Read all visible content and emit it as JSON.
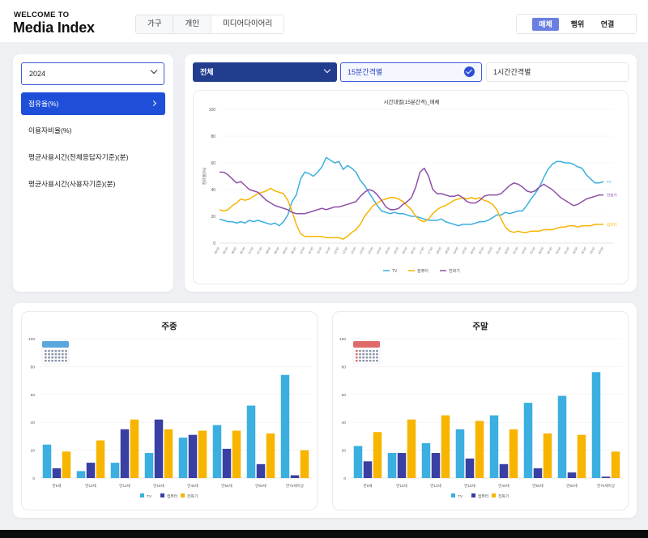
{
  "header": {
    "logo_small": "WELCOME TO",
    "logo_big": "Media Index",
    "segments": [
      "가구",
      "개인",
      "미디어다이어리"
    ],
    "modes": [
      "매체",
      "행위",
      "연결"
    ],
    "active_mode": "매체"
  },
  "sidebar": {
    "year": "2024",
    "items": [
      {
        "label": "점유율(%)",
        "active": true
      },
      {
        "label": "이용자비율(%)",
        "active": false
      },
      {
        "label": "평균사용시간(전체응답자기준)(분)",
        "active": false
      },
      {
        "label": "평균사용시간(사용자기준)(분)",
        "active": false
      }
    ]
  },
  "filters": {
    "scope": "전체",
    "interval_selected": "15분간격별",
    "interval_other": "1시간간격별"
  },
  "colors": {
    "tv": "#3aafe0",
    "computer": "#3a3fa3",
    "smartphone": "#f7b500",
    "smartphone_line": "#8e4fa6"
  },
  "chart_data": [
    {
      "type": "line",
      "title": "시간대별(15분간격)_매체",
      "ylabel": "점유율(%)",
      "ylim": [
        0,
        100
      ],
      "yticks": [
        0,
        20,
        40,
        60,
        80,
        100
      ],
      "x_start": "05:00",
      "x_step_minutes": 15,
      "series": [
        {
          "name": "TV",
          "end_label": "TV",
          "values": [
            18,
            17,
            16,
            16,
            15,
            16,
            15,
            17,
            16,
            17,
            16,
            15,
            14,
            15,
            13,
            16,
            21,
            31,
            36,
            48,
            53,
            52,
            50,
            53,
            57,
            64,
            62,
            60,
            61,
            55,
            58,
            56,
            53,
            47,
            43,
            38,
            33,
            28,
            24,
            23,
            22,
            23,
            22,
            22,
            21,
            20,
            20,
            19,
            18,
            17,
            17,
            17,
            18,
            16,
            15,
            14,
            13,
            14,
            14,
            14,
            15,
            16,
            16,
            17,
            19,
            21,
            21,
            23,
            22,
            23,
            24,
            24,
            28,
            33,
            37,
            42,
            49,
            55,
            59,
            61,
            61,
            60,
            60,
            59,
            57,
            56,
            51,
            48,
            45,
            45,
            46
          ]
        },
        {
          "name": "컴퓨터",
          "end_label": "컴퓨터",
          "values": [
            25,
            24,
            25,
            28,
            30,
            33,
            32,
            33,
            35,
            37,
            38,
            39,
            41,
            39,
            38,
            37,
            32,
            24,
            14,
            7,
            5,
            5,
            5,
            5,
            5,
            4,
            4,
            4,
            4,
            3,
            5,
            8,
            10,
            14,
            20,
            24,
            28,
            30,
            32,
            33,
            34,
            34,
            33,
            31,
            28,
            25,
            20,
            17,
            16,
            18,
            22,
            25,
            27,
            28,
            30,
            32,
            33,
            34,
            33,
            34,
            33,
            34,
            32,
            31,
            29,
            25,
            18,
            12,
            9,
            8,
            9,
            8,
            8,
            9,
            9,
            9,
            10,
            10,
            10,
            11,
            12,
            12,
            13,
            13,
            12,
            13,
            13,
            13,
            14,
            14,
            14
          ]
        },
        {
          "name": "전화기",
          "end_label": "전화기",
          "values": [
            53,
            53,
            51,
            48,
            45,
            46,
            43,
            40,
            39,
            38,
            35,
            32,
            30,
            28,
            27,
            26,
            25,
            23,
            22,
            22,
            22,
            23,
            24,
            25,
            26,
            25,
            26,
            27,
            27,
            28,
            29,
            30,
            31,
            35,
            38,
            40,
            39,
            36,
            32,
            27,
            25,
            25,
            26,
            29,
            31,
            34,
            42,
            53,
            56,
            50,
            40,
            37,
            37,
            36,
            35,
            35,
            36,
            34,
            31,
            30,
            30,
            32,
            35,
            36,
            36,
            36,
            37,
            40,
            43,
            45,
            44,
            42,
            39,
            38,
            39,
            42,
            44,
            42,
            40,
            37,
            34,
            32,
            30,
            28,
            29,
            31,
            33,
            34,
            35,
            36,
            36
          ]
        }
      ],
      "legend": [
        "TV",
        "컴퓨터",
        "전화기"
      ],
      "legend_position": "bottom"
    },
    {
      "type": "bar",
      "title": "주중",
      "ylim": [
        0,
        100
      ],
      "yticks": [
        0,
        20,
        40,
        60,
        80,
        100
      ],
      "categories": [
        "만6세",
        "만10세",
        "만13세",
        "만16세",
        "만40세",
        "만50세",
        "만60세",
        "만70세이상"
      ],
      "series": [
        {
          "name": "TV",
          "values": [
            24,
            5,
            11,
            18,
            29,
            38,
            52,
            74
          ]
        },
        {
          "name": "컴퓨터",
          "values": [
            7,
            11,
            35,
            42,
            31,
            21,
            10,
            2
          ]
        },
        {
          "name": "전화기",
          "values": [
            19,
            27,
            42,
            35,
            34,
            34,
            32,
            20
          ]
        }
      ],
      "legend": [
        "TV",
        "컴퓨터",
        "전화기"
      ],
      "legend_position": "bottom"
    },
    {
      "type": "bar",
      "title": "주말",
      "ylim": [
        0,
        100
      ],
      "yticks": [
        0,
        20,
        40,
        60,
        80,
        100
      ],
      "categories": [
        "만6세",
        "만10세",
        "만13세",
        "만16세",
        "만40세",
        "만50세",
        "만60세",
        "만70세이상"
      ],
      "series": [
        {
          "name": "TV",
          "values": [
            23,
            18,
            25,
            35,
            45,
            54,
            59,
            76
          ]
        },
        {
          "name": "컴퓨터",
          "values": [
            12,
            18,
            18,
            14,
            10,
            7,
            4,
            1
          ]
        },
        {
          "name": "전화기",
          "values": [
            33,
            42,
            45,
            41,
            35,
            32,
            31,
            19
          ]
        }
      ],
      "legend": [
        "TV",
        "컴퓨터",
        "전화기"
      ],
      "legend_position": "bottom"
    }
  ]
}
